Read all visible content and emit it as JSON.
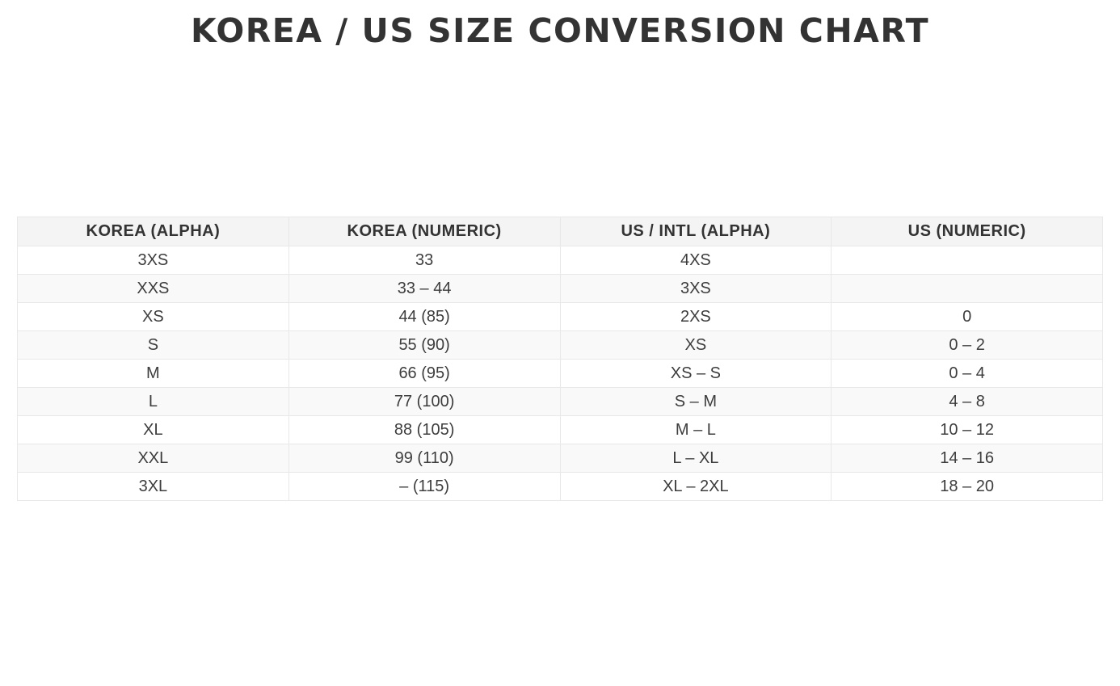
{
  "page": {
    "title": "KOREA / US SIZE CONVERSION CHART"
  },
  "chart_data": {
    "type": "table",
    "title": "KOREA / US SIZE CONVERSION CHART",
    "columns": [
      "KOREA (ALPHA)",
      "KOREA (NUMERIC)",
      "US / INTL (ALPHA)",
      "US (NUMERIC)"
    ],
    "rows": [
      [
        "3XS",
        "33",
        "4XS",
        ""
      ],
      [
        "XXS",
        "33 – 44",
        "3XS",
        ""
      ],
      [
        "XS",
        "44 (85)",
        "2XS",
        "0"
      ],
      [
        "S",
        "55 (90)",
        "XS",
        "0 – 2"
      ],
      [
        "M",
        "66 (95)",
        "XS – S",
        "0 – 4"
      ],
      [
        "L",
        "77 (100)",
        "S – M",
        "4 – 8"
      ],
      [
        "XL",
        "88 (105)",
        "M – L",
        "10 – 12"
      ],
      [
        "XXL",
        "99 (110)",
        "L – XL",
        "14 – 16"
      ],
      [
        "3XL",
        "– (115)",
        "XL – 2XL",
        "18 – 20"
      ]
    ],
    "layout": {
      "columns_equal_width": true,
      "header_row": true,
      "zebra_striping": "even rows shaded"
    }
  },
  "colors": {
    "title_text": "#333333",
    "header_bg": "#f4f4f4",
    "row_alt_bg": "#f9f9f9",
    "border": "#e8e8e8",
    "cell_text": "#3d3d3d",
    "page_bg": "#ffffff"
  }
}
